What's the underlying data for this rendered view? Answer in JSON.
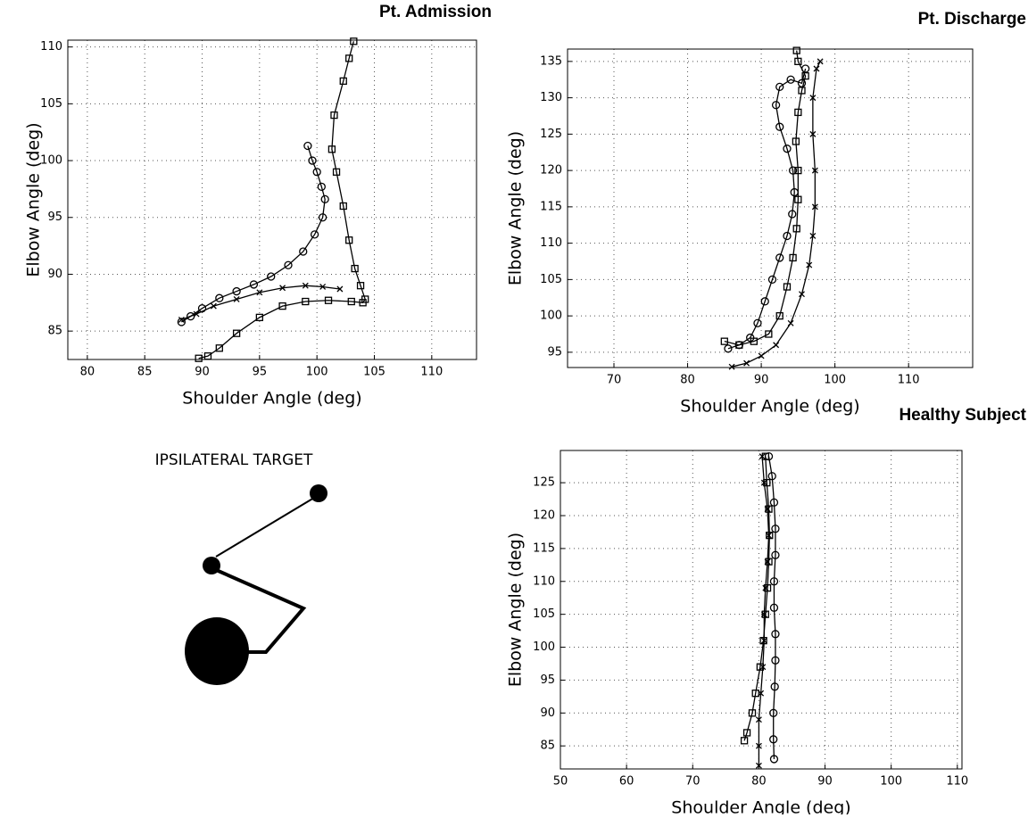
{
  "chart_data": [
    {
      "type": "line",
      "title": "Pt. Admission",
      "xlabel": "Shoulder Angle (deg)",
      "ylabel": "Elbow Angle (deg)",
      "xlim": [
        78.3,
        113.9
      ],
      "ylim": [
        82.5,
        110.6
      ],
      "xticks": [
        80,
        85,
        90,
        95,
        100,
        105,
        110
      ],
      "yticks": [
        85,
        90,
        95,
        100,
        105,
        110
      ],
      "grid": true,
      "series": [
        {
          "marker": "o",
          "color": "#000000",
          "x": [
            99.2,
            99.6,
            100,
            100.4,
            100.7,
            100.5,
            99.8,
            98.8,
            97.5,
            96,
            94.5,
            93,
            91.5,
            90,
            89,
            88.2
          ],
          "values": [
            101.3,
            100,
            99,
            97.7,
            96.6,
            95,
            93.5,
            92,
            90.8,
            89.8,
            89.1,
            88.5,
            87.9,
            87,
            86.3,
            85.8
          ]
        },
        {
          "marker": "x",
          "color": "#000000",
          "x": [
            88.2,
            89.5,
            91,
            93,
            95,
            97,
            99,
            100.5,
            102
          ],
          "values": [
            86,
            86.5,
            87.2,
            87.8,
            88.4,
            88.8,
            89,
            88.9,
            88.7
          ]
        },
        {
          "marker": "s",
          "color": "#000000",
          "x": [
            103.2,
            102.8,
            102.3,
            101.5,
            101.3,
            101.7,
            102.3,
            102.8,
            103.3,
            103.8,
            104.2,
            104,
            103,
            101,
            99,
            97,
            95,
            93,
            91.5,
            90.5,
            89.7
          ],
          "values": [
            110.5,
            109,
            107,
            104,
            101,
            99,
            96,
            93,
            90.5,
            89,
            87.8,
            87.5,
            87.6,
            87.7,
            87.6,
            87.2,
            86.2,
            84.8,
            83.5,
            82.8,
            82.6
          ]
        }
      ]
    },
    {
      "type": "line",
      "title": "Pt. Discharge",
      "xlabel": "Shoulder Angle (deg)",
      "ylabel": "Elbow Angle (deg)",
      "xlim": [
        63.7,
        118.7
      ],
      "ylim": [
        92.9,
        136.7
      ],
      "xticks": [
        70,
        80,
        90,
        100,
        110
      ],
      "yticks": [
        95,
        100,
        105,
        110,
        115,
        120,
        125,
        130,
        135
      ],
      "grid": true,
      "series": [
        {
          "marker": "o",
          "color": "#000000",
          "x": [
            85.5,
            87,
            88.5,
            89.5,
            90.5,
            91.5,
            92.5,
            93.5,
            94.2,
            94.5,
            94.3,
            93.5,
            92.5,
            92,
            92.5,
            94,
            95.5,
            96
          ],
          "values": [
            95.5,
            96,
            97,
            99,
            102,
            105,
            108,
            111,
            114,
            117,
            120,
            123,
            126,
            129,
            131.5,
            132.5,
            132,
            134
          ]
        },
        {
          "marker": "x",
          "color": "#000000",
          "x": [
            86,
            88,
            90,
            92,
            94,
            95.5,
            96.5,
            97,
            97.3,
            97.3,
            97,
            97,
            97.5,
            98
          ],
          "values": [
            93,
            93.5,
            94.5,
            96,
            99,
            103,
            107,
            111,
            115,
            120,
            125,
            130,
            134,
            135
          ]
        },
        {
          "marker": "s",
          "color": "#000000",
          "x": [
            85,
            87,
            89,
            91,
            92.5,
            93.5,
            94.3,
            94.8,
            95,
            95,
            94.7,
            95,
            95.5,
            96,
            95,
            94.8
          ],
          "values": [
            96.5,
            96,
            96.5,
            97.5,
            100,
            104,
            108,
            112,
            116,
            120,
            124,
            128,
            131,
            133,
            135,
            136.5
          ]
        }
      ]
    },
    {
      "type": "line",
      "title": "Healthy Subject",
      "xlabel": "Shoulder Angle (deg)",
      "ylabel": "Elbow Angle (deg)",
      "xlim": [
        50,
        110.7
      ],
      "ylim": [
        81.5,
        129.9
      ],
      "xticks": [
        50,
        60,
        70,
        80,
        90,
        100,
        110
      ],
      "yticks": [
        85,
        90,
        95,
        100,
        105,
        110,
        115,
        120,
        125
      ],
      "grid": true,
      "series": [
        {
          "marker": "o",
          "color": "#000000",
          "x": [
            81.5,
            82,
            82.3,
            82.5,
            82.5,
            82.3,
            82.3,
            82.5,
            82.5,
            82.4,
            82.2,
            82.2,
            82.3
          ],
          "values": [
            129,
            126,
            122,
            118,
            114,
            110,
            106,
            102,
            98,
            94,
            90,
            86,
            83
          ]
        },
        {
          "marker": "x",
          "color": "#000000",
          "x": [
            80.5,
            80.8,
            81.3,
            81.5,
            81.3,
            81,
            80.8,
            80.8,
            80.6,
            80.3,
            80,
            80,
            80
          ],
          "values": [
            129,
            125,
            121,
            117,
            113,
            109,
            105,
            101,
            97,
            93,
            89,
            85,
            82
          ]
        },
        {
          "marker": "s",
          "color": "#000000",
          "x": [
            81,
            81.2,
            81.5,
            81.6,
            81.5,
            81.3,
            81,
            80.7,
            80.2,
            79.5,
            79,
            78.2,
            77.8
          ],
          "values": [
            129,
            125,
            121,
            117,
            113,
            109,
            105,
            101,
            97,
            93,
            90,
            87,
            85.8
          ]
        }
      ]
    }
  ],
  "diagram": {
    "title": "IPSILATERAL TARGET"
  }
}
